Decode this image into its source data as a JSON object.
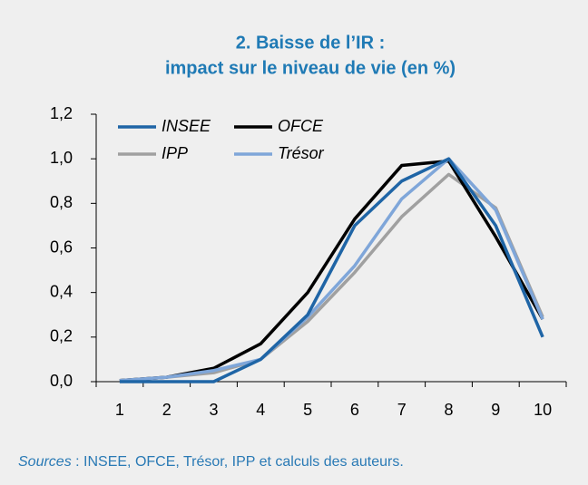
{
  "chart_data": {
    "type": "line",
    "title": [
      "2. Baisse de l’IR :",
      "impact sur le niveau de vie (en %)"
    ],
    "categories": [
      "1",
      "2",
      "3",
      "4",
      "5",
      "6",
      "7",
      "8",
      "9",
      "10"
    ],
    "series": [
      {
        "name": "INSEE",
        "color": "#1f65a6",
        "values": [
          0,
          0,
          0,
          0.1,
          0.3,
          0.7,
          0.9,
          1.0,
          0.7,
          0.2
        ]
      },
      {
        "name": "OFCE",
        "color": "#000000",
        "values": [
          0.005,
          0.02,
          0.06,
          0.17,
          0.4,
          0.73,
          0.97,
          0.99,
          0.65,
          0.28
        ]
      },
      {
        "name": "IPP",
        "color": "#a0a0a0",
        "values": [
          0.005,
          0.02,
          0.04,
          0.1,
          0.27,
          0.49,
          0.74,
          0.93,
          0.78,
          0.29
        ]
      },
      {
        "name": "Trésor",
        "color": "#7fa6d9",
        "values": [
          0.005,
          0.02,
          0.05,
          0.1,
          0.29,
          0.52,
          0.82,
          1.0,
          0.77,
          0.28
        ]
      }
    ],
    "ylim": [
      0,
      1.2
    ],
    "yticks": [
      {
        "value": 0,
        "label": "0,0"
      },
      {
        "value": 0.2,
        "label": "0,2"
      },
      {
        "value": 0.4,
        "label": "0,4"
      },
      {
        "value": 0.6,
        "label": "0,6"
      },
      {
        "value": 0.8,
        "label": "0,8"
      },
      {
        "value": 1.0,
        "label": "1,0"
      },
      {
        "value": 1.2,
        "label": "1,2"
      }
    ],
    "source_label": "Sources",
    "source_text": " : INSEE, OFCE, Trésor, IPP et calculs des auteurs."
  }
}
